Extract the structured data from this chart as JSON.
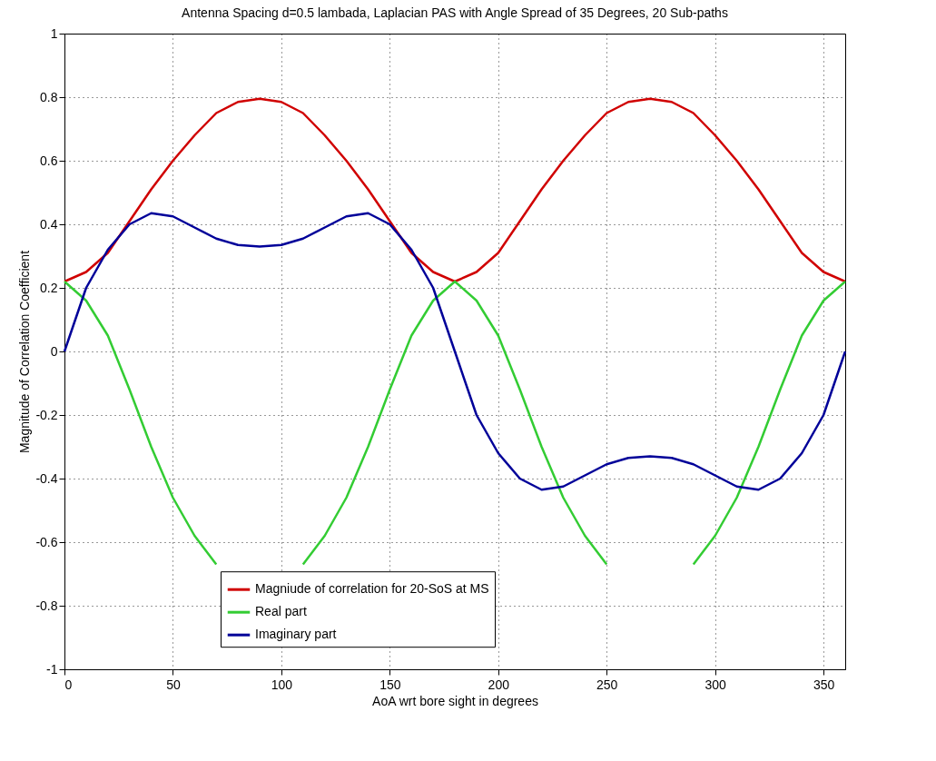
{
  "chart_data": {
    "type": "line",
    "title": "Antenna Spacing d=0.5 lambada, Laplacian PAS with Angle Spread of 35 Degrees, 20 Sub-paths",
    "xlabel": "AoA wrt bore sight in degrees",
    "ylabel": "Magnitude of Correlation Coefficient",
    "x": [
      0,
      10,
      20,
      30,
      40,
      50,
      60,
      70,
      80,
      90,
      100,
      110,
      120,
      130,
      140,
      150,
      160,
      170,
      180,
      190,
      200,
      210,
      220,
      230,
      240,
      250,
      260,
      270,
      280,
      290,
      300,
      310,
      320,
      330,
      340,
      350,
      360
    ],
    "series": [
      {
        "name": "Magniude of correlation for 20-SoS at MS",
        "color": "#d00000",
        "values": [
          0.22,
          0.25,
          0.31,
          0.41,
          0.51,
          0.6,
          0.68,
          0.75,
          0.785,
          0.795,
          0.785,
          0.75,
          0.68,
          0.6,
          0.51,
          0.41,
          0.31,
          0.25,
          0.22,
          0.25,
          0.31,
          0.41,
          0.51,
          0.6,
          0.68,
          0.75,
          0.785,
          0.795,
          0.785,
          0.75,
          0.68,
          0.6,
          0.51,
          0.41,
          0.31,
          0.25,
          0.22
        ]
      },
      {
        "name": "Real part",
        "color": "#33cc33",
        "values": [
          0.22,
          0.16,
          0.05,
          -0.12,
          -0.3,
          -0.46,
          -0.58,
          -0.67,
          null,
          null,
          null,
          -0.67,
          -0.58,
          -0.46,
          -0.3,
          -0.12,
          0.05,
          0.16,
          0.22,
          0.16,
          0.05,
          -0.12,
          -0.3,
          -0.46,
          -0.58,
          -0.67,
          null,
          null,
          null,
          -0.67,
          -0.58,
          -0.46,
          -0.3,
          -0.12,
          0.05,
          0.16,
          0.22
        ]
      },
      {
        "name": "Imaginary part",
        "color": "#000099",
        "values": [
          0,
          0.2,
          0.32,
          0.4,
          0.435,
          0.425,
          0.39,
          0.355,
          0.335,
          0.33,
          0.335,
          0.355,
          0.39,
          0.425,
          0.435,
          0.4,
          0.32,
          0.2,
          0,
          -0.2,
          -0.32,
          -0.4,
          -0.435,
          -0.425,
          -0.39,
          -0.355,
          -0.335,
          -0.33,
          -0.335,
          -0.355,
          -0.39,
          -0.425,
          -0.435,
          -0.4,
          -0.32,
          -0.2,
          0
        ]
      }
    ],
    "xlim": [
      0,
      360
    ],
    "xticks": [
      0,
      50,
      100,
      150,
      200,
      250,
      300,
      350
    ],
    "ylim": [
      -1,
      1
    ],
    "yticks": [
      -1,
      -0.8,
      -0.6,
      -0.4,
      -0.2,
      0,
      0.2,
      0.4,
      0.6,
      0.8,
      1
    ],
    "grid": true,
    "legend": "bottom",
    "line_style": "solid",
    "marker": "none"
  }
}
